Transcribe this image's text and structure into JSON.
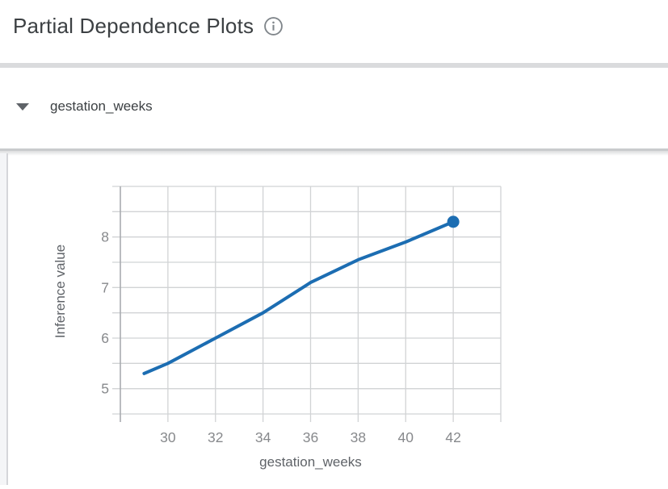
{
  "header": {
    "title": "Partial Dependence Plots",
    "info_icon": "info-circle-outline"
  },
  "section": {
    "feature_name": "gestation_weeks",
    "state": "expanded",
    "caret_icon": "caret-down"
  },
  "chart_data": {
    "type": "line",
    "title": "",
    "xlabel": "gestation_weeks",
    "ylabel": "Inference value",
    "x": [
      29,
      30,
      32,
      34,
      36,
      38,
      40,
      42
    ],
    "y": [
      5.3,
      5.5,
      6.0,
      6.5,
      7.1,
      7.55,
      7.9,
      8.3
    ],
    "xlim": [
      28,
      44
    ],
    "ylim": [
      4.5,
      9
    ],
    "x_tick_labels": [
      30,
      32,
      34,
      36,
      38,
      40,
      42
    ],
    "y_tick_labels": [
      5,
      6,
      7,
      8
    ],
    "x_grid_step": 2,
    "y_grid_step": 0.5,
    "grid": true,
    "legend": "none",
    "line_color": "#1c6db2",
    "endpoint_marker": "filled-dot"
  },
  "colors": {
    "title_text": "#3c4043",
    "feature_text": "#3c4043",
    "icon_gray": "#80868b",
    "grid": "#d1d3d5",
    "axis_line": "#a3a6aa",
    "tick_label": "#87898c",
    "axis_title": "#5f6368",
    "thick_divider": "#dadbdd",
    "panel_divider": "#c9cbcd",
    "rail_bg": "#f4f5f7",
    "rail_border": "#d5d6da"
  }
}
